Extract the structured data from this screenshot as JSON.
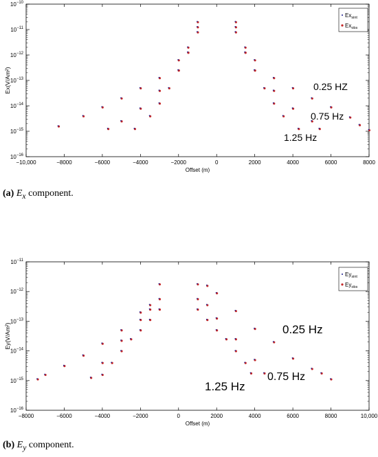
{
  "chart_data": [
    {
      "type": "scatter",
      "id": "a",
      "yscale": "log",
      "xlim": [
        -10000,
        8000
      ],
      "ylim_exp": [
        -16,
        -10
      ],
      "grid": false,
      "legend_position": "top-right",
      "xlabel": "Offset (m)",
      "ylabel": "Ex(V/Am²)",
      "xticks": [
        -10000,
        -8000,
        -6000,
        -4000,
        -2000,
        0,
        2000,
        4000,
        6000,
        8000
      ],
      "xtick_labels": [
        "−10,000",
        "−8000",
        "−6000",
        "−4000",
        "−2000",
        "0",
        "2000",
        "4000",
        "6000",
        "8000"
      ],
      "ytick_exps": [
        -16,
        -15,
        -14,
        -13,
        -12,
        -11,
        -10
      ],
      "legend": [
        {
          "label": "Ex",
          "sub": "sint",
          "color": "#1a1a8c"
        },
        {
          "label": "Ex",
          "sub": "obs",
          "color": "#c62828"
        }
      ],
      "series": [
        {
          "name": "0.25 HZ",
          "freq_label": "0.25 HZ",
          "x": [
            -8300,
            -7000,
            -6000,
            -5000,
            -4000,
            -3000,
            -2000,
            -1500,
            -1000,
            1000,
            1500,
            2000,
            3000,
            4000,
            5000,
            6000,
            7000,
            7500,
            8000
          ],
          "y_exp": [
            -14.8,
            -14.4,
            -14.05,
            -13.7,
            -13.3,
            -12.9,
            -12.2,
            -11.7,
            -10.7,
            -10.7,
            -11.7,
            -12.2,
            -12.9,
            -13.3,
            -13.7,
            -14.05,
            -14.45,
            -14.75,
            -14.95
          ]
        },
        {
          "name": "0.75 Hz",
          "freq_label": "0.75 Hz",
          "x": [
            -5700,
            -5000,
            -4000,
            -3000,
            -2000,
            -1500,
            -1000,
            1000,
            1500,
            2000,
            3000,
            4000,
            5000,
            5400
          ],
          "y_exp": [
            -14.9,
            -14.6,
            -14.1,
            -13.4,
            -12.6,
            -11.9,
            -10.9,
            -10.9,
            -11.9,
            -12.6,
            -13.4,
            -14.1,
            -14.6,
            -14.9
          ]
        },
        {
          "name": "1.25 Hz",
          "freq_label": "1.25 Hz",
          "x": [
            -4300,
            -3500,
            -3000,
            -2500,
            -2000,
            -1500,
            -1000,
            1000,
            1500,
            2000,
            2500,
            3000,
            3500,
            4300
          ],
          "y_exp": [
            -14.9,
            -14.4,
            -13.9,
            -13.3,
            -12.6,
            -11.9,
            -11.1,
            -11.1,
            -11.9,
            -12.6,
            -13.3,
            -13.9,
            -14.4,
            -14.9
          ]
        }
      ]
    },
    {
      "type": "scatter",
      "id": "b",
      "yscale": "log",
      "xlim": [
        -8000,
        10000
      ],
      "ylim_exp": [
        -16,
        -11
      ],
      "grid": false,
      "legend_position": "top-right",
      "xlabel": "Offset (m)",
      "ylabel": "Ey(V/Am²)",
      "xticks": [
        -8000,
        -6000,
        -4000,
        -2000,
        0,
        2000,
        4000,
        6000,
        8000,
        10000
      ],
      "xtick_labels": [
        "−8000",
        "−6000",
        "−4000",
        "−2000",
        "0",
        "2000",
        "4000",
        "6000",
        "8000",
        "10,000"
      ],
      "ytick_exps": [
        -16,
        -15,
        -14,
        -13,
        -12,
        -11
      ],
      "legend": [
        {
          "label": "Ey",
          "sub": "sint",
          "color": "#1a1a8c"
        },
        {
          "label": "Ey",
          "sub": "obs",
          "color": "#c62828"
        }
      ],
      "series": [
        {
          "name": "0.25 Hz",
          "freq_label": "0.25 Hz",
          "x": [
            -7400,
            -7000,
            -6000,
            -5000,
            -4000,
            -3000,
            -2000,
            -1500,
            -1000,
            1000,
            1500,
            2000,
            3000,
            4000,
            5000,
            6000,
            7000,
            7500,
            8000
          ],
          "y_exp": [
            -14.95,
            -14.8,
            -14.5,
            -14.15,
            -13.75,
            -13.3,
            -12.7,
            -12.45,
            -11.75,
            -11.75,
            -11.8,
            -12.05,
            -12.65,
            -13.25,
            -13.7,
            -14.25,
            -14.6,
            -14.75,
            -14.95
          ]
        },
        {
          "name": "0.75 Hz",
          "freq_label": "0.75 Hz",
          "x": [
            -4600,
            -4000,
            -3000,
            -2000,
            -1500,
            -1000,
            1000,
            1500,
            2000,
            3000,
            4000,
            4500
          ],
          "y_exp": [
            -14.9,
            -14.4,
            -13.65,
            -12.95,
            -12.6,
            -12.25,
            -12.25,
            -12.45,
            -12.9,
            -13.6,
            -14.3,
            -14.75
          ]
        },
        {
          "name": "1.25 Hz",
          "freq_label": "1.25 Hz",
          "x": [
            -4000,
            -3500,
            -3000,
            -2500,
            -2000,
            -1500,
            -1000,
            1000,
            1500,
            2000,
            2500,
            3000,
            3500,
            3800
          ],
          "y_exp": [
            -14.8,
            -14.4,
            -14.0,
            -13.6,
            -13.3,
            -12.95,
            -12.6,
            -12.6,
            -12.95,
            -13.3,
            -13.6,
            -14.0,
            -14.4,
            -14.75
          ]
        }
      ]
    }
  ],
  "captions": [
    {
      "tag": "(a)",
      "sym": "E",
      "sub": "x",
      "text": " component."
    },
    {
      "tag": "(b)",
      "sym": "E",
      "sub": "y",
      "text": " component."
    }
  ]
}
